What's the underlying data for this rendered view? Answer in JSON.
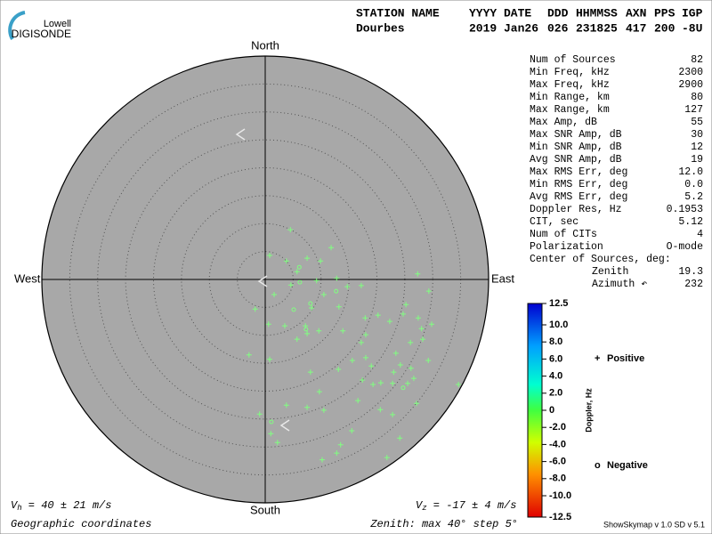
{
  "logo": {
    "top": "Lowell",
    "bottom": "DIGISONDE"
  },
  "header": {
    "labels": [
      "STATION NAME",
      "YYYY DATE",
      "DDD",
      "HHMMSS",
      "AXN",
      "PPS",
      "IGP"
    ],
    "values": [
      "Dourbes",
      "2019 Jan26",
      "026",
      "231825",
      "417",
      "200",
      "-8U"
    ]
  },
  "chart_data": {
    "type": "skymap",
    "directions": {
      "north": "North",
      "south": "South",
      "east": "East",
      "west": "West"
    },
    "rlim": [
      0,
      40
    ],
    "rings": [
      5,
      10,
      15,
      20,
      25,
      30,
      35,
      40
    ],
    "point_color": "#80ff80",
    "series": [
      {
        "name": "Positive",
        "marker": "+",
        "color": "#0000cc",
        "x": [
          4.5,
          0.8,
          3.8,
          7.5,
          9.9,
          11.8,
          5.7,
          9.2,
          4.6,
          12.8,
          14.7,
          17.2,
          10.5,
          1.6,
          8.3,
          13.2,
          -1.8,
          3.5,
          7.2,
          7.5,
          9.6,
          5.7,
          0.6,
          17.9,
          20.2,
          22.3,
          24.7,
          27.4,
          29.8,
          28.0,
          28.2,
          27.3,
          29.3,
          25.2,
          26.0,
          23.4,
          24.2,
          23.0,
          26.1,
          29.2,
          18.0,
          19.0,
          15.6,
          17.2,
          18.0,
          13.9,
          -2.9,
          0.8,
          8.1,
          9.7,
          13.1,
          16.6,
          17.4,
          19.3,
          20.7,
          22.8,
          25.5,
          26.6,
          34.6,
          27.1,
          20.6,
          22.8,
          7.5,
          10.5,
          3.8,
          -1.0,
          1.0,
          2.2,
          15.5,
          13.5,
          12.8,
          10.2,
          21.8,
          24.1
        ],
        "y": [
          8.9,
          4.3,
          3.3,
          3.8,
          3.3,
          5.7,
          1.4,
          -0.2,
          -1.0,
          0.2,
          -1.3,
          -1.1,
          -2.7,
          -2.7,
          -5.1,
          -4.9,
          -5.3,
          -8.3,
          -8.3,
          -9.7,
          -9.2,
          -10.7,
          -8.0,
          -6.9,
          -6.4,
          -7.5,
          -6.2,
          -6.9,
          -8.0,
          -8.8,
          -10.7,
          1.0,
          -2.1,
          -4.5,
          -11.3,
          -13.2,
          -15.3,
          -16.6,
          -15.9,
          -14.5,
          -14.0,
          -15.5,
          -14.5,
          -11.3,
          -9.9,
          -9.2,
          -13.5,
          -14.3,
          -16.6,
          -20.1,
          -16.1,
          -21.7,
          -18.0,
          -18.8,
          -18.5,
          -18.6,
          -18.6,
          -17.7,
          -18.8,
          -22.2,
          -23.3,
          -24.2,
          -22.9,
          -23.4,
          -22.5,
          -24.1,
          -27.6,
          -29.2,
          -27.1,
          -29.6,
          -31.1,
          -32.3,
          -31.9,
          -28.4
        ]
      },
      {
        "name": "Negative",
        "marker": "o",
        "color": "#cc0000",
        "x": [
          6.1,
          6.2,
          12.7,
          8.1,
          5.1,
          1.1,
          24.7,
          7.3
        ],
        "y": [
          2.2,
          -0.5,
          -2.1,
          -4.3,
          -5.4,
          -25.5,
          -19.4,
          -8.9
        ]
      }
    ],
    "colorbar": {
      "label": "Doppler, Hz",
      "lim": [
        -12.5,
        12.5
      ],
      "ticks": [
        12.5,
        {
          "value": 10,
          "label": "10.0"
        },
        {
          "value": 8,
          "label": "8.0"
        },
        {
          "value": 6,
          "label": "6.0"
        },
        {
          "value": 4,
          "label": "4.0"
        },
        {
          "value": 2,
          "label": "2.0"
        },
        0,
        {
          "value": -2,
          "label": "-2.0"
        },
        {
          "value": -4,
          "label": "-4.0"
        },
        {
          "value": -6,
          "label": "-6.0"
        },
        {
          "value": -8,
          "label": "-8.0"
        },
        {
          "value": -10,
          "label": "-10.0"
        },
        -12.5
      ]
    }
  },
  "stats": {
    "rows": [
      [
        "Num of Sources",
        "82"
      ],
      [
        "Min Freq, kHz",
        "2300"
      ],
      [
        "Max Freq, kHz",
        "2900"
      ],
      [
        "Min Range, km",
        "80"
      ],
      [
        "Max Range, km",
        "127"
      ],
      [
        "Max Amp, dB",
        "55"
      ],
      [
        "Max SNR Amp, dB",
        "30"
      ],
      [
        "Min SNR Amp, dB",
        "12"
      ],
      [
        "Avg SNR Amp, dB",
        "19"
      ],
      [
        "Max RMS Err, deg",
        "12.0"
      ],
      [
        "Min RMS Err, deg",
        "0.0"
      ],
      [
        "Avg RMS Err, deg",
        "5.2"
      ],
      [
        "Doppler Res, Hz",
        "0.1953"
      ],
      [
        "CIT, sec",
        "5.12"
      ],
      [
        "Num of CITs",
        "4"
      ],
      [
        "Polarization",
        "O-mode"
      ]
    ],
    "center_title": "Center of Sources, deg:",
    "center_rows": [
      [
        "Zenith",
        "19.3"
      ],
      [
        "Azimuth ↶",
        "232"
      ]
    ]
  },
  "footer": {
    "vh": {
      "symbol": "V",
      "sub": "h",
      "text": " = 40 ± 21 m/s"
    },
    "vz": {
      "symbol": "V",
      "sub": "z",
      "text": " = -17 ± 4 m/s"
    },
    "coords": "Geographic coordinates",
    "zenith": "Zenith: max 40°  step 5°",
    "version": "ShowSkymap v 1.0  SD v 5.1"
  }
}
